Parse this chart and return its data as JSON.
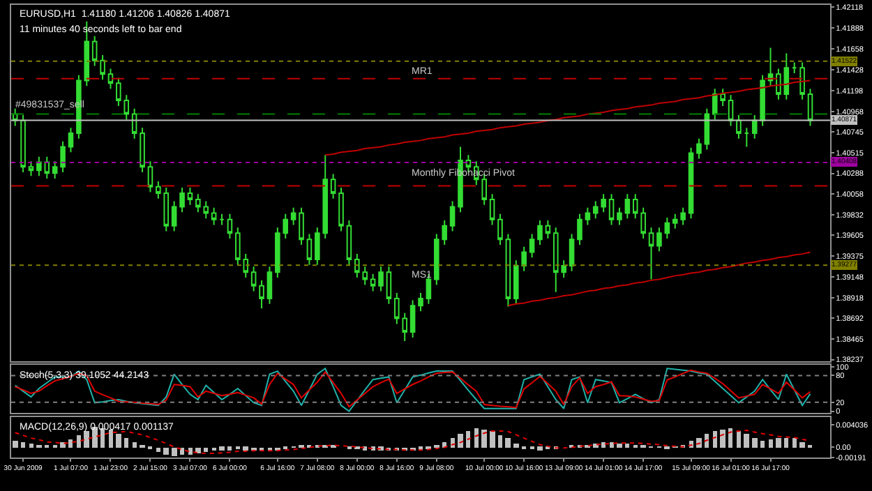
{
  "chart_data": [
    {
      "type": "candlestick",
      "title": "EURUSD,H1  1.41180 1.41206 1.40826 1.40871",
      "subtitle": "11 minutes 40 seconds left to bar end",
      "categories": [
        null,
        null,
        null,
        null,
        null,
        null,
        null,
        null,
        null,
        null,
        null,
        null,
        null,
        null,
        null,
        null,
        null,
        null,
        null,
        null,
        null,
        null,
        null,
        null,
        null,
        null,
        null,
        null,
        null,
        null,
        null,
        null,
        null,
        null,
        null,
        null,
        null,
        null,
        null,
        null,
        null,
        null,
        null,
        null,
        null,
        null,
        null,
        null,
        null,
        null,
        null,
        null,
        null,
        null,
        null,
        null,
        null,
        null,
        null,
        null,
        null,
        null,
        null,
        null,
        null,
        null,
        null,
        null,
        null,
        null,
        null,
        null,
        null,
        null,
        null,
        null,
        null,
        null,
        null,
        null,
        null,
        null,
        null,
        null,
        null,
        null,
        null,
        null,
        null,
        null,
        null,
        null,
        null,
        null,
        null,
        null,
        null,
        null,
        null,
        null,
        null
      ],
      "ylim": [
        1.3822,
        1.4214
      ],
      "yticks": [
        1.42118,
        1.41888,
        1.41658,
        1.41428,
        1.41198,
        1.40968,
        1.40745,
        1.40515,
        1.40288,
        1.40058,
        1.39832,
        1.39605,
        1.39375,
        1.39148,
        1.38918,
        1.38692,
        1.38465,
        1.38237
      ],
      "series": [
        {
          "type": "line",
          "color": "#c00000",
          "values": [
            null,
            null,
            null,
            null,
            null,
            null,
            null,
            null,
            null,
            null,
            null,
            null,
            null,
            null,
            null,
            null,
            null,
            null,
            null,
            null,
            null,
            null,
            null,
            null,
            null,
            null,
            null,
            null,
            null,
            null,
            null,
            null,
            null,
            null,
            null,
            null,
            null,
            null,
            null,
            1.4049,
            1.405,
            1.4052,
            1.4053,
            1.4054,
            1.4056,
            1.4057,
            1.4058,
            1.406,
            1.4061,
            1.4063,
            1.4064,
            1.4065,
            1.4067,
            1.4068,
            1.4069,
            1.4071,
            1.4072,
            1.4073,
            1.4075,
            1.4076,
            1.4077,
            1.4079,
            1.408,
            1.4081,
            1.4083,
            1.4084,
            1.4085,
            1.4087,
            1.4088,
            1.409,
            1.4091,
            1.4092,
            1.4094,
            1.4095,
            1.4096,
            1.4098,
            1.4099,
            1.41,
            1.4102,
            1.4103,
            1.4104,
            1.4106,
            1.4107,
            1.4108,
            1.411,
            1.4111,
            1.4112,
            1.4114,
            1.4115,
            1.4117,
            1.4118,
            1.4119,
            1.4121,
            1.4122,
            1.4123,
            1.4125,
            1.4126,
            1.4127,
            1.4129,
            1.413,
            1.4131
          ]
        },
        {
          "type": "line",
          "color": "#c00000",
          "values": [
            null,
            null,
            null,
            null,
            null,
            null,
            null,
            null,
            null,
            null,
            null,
            null,
            null,
            null,
            null,
            null,
            null,
            null,
            null,
            null,
            null,
            null,
            null,
            null,
            null,
            null,
            null,
            null,
            null,
            null,
            null,
            null,
            null,
            null,
            null,
            null,
            null,
            null,
            null,
            null,
            null,
            null,
            null,
            null,
            null,
            null,
            null,
            null,
            null,
            null,
            null,
            null,
            null,
            null,
            null,
            null,
            null,
            null,
            null,
            null,
            null,
            null,
            1.3883,
            1.3885,
            1.3886,
            1.3888,
            1.3889,
            1.3891,
            1.3892,
            1.3894,
            1.3895,
            1.3897,
            1.3899,
            1.39,
            1.3902,
            1.3903,
            1.3905,
            1.3906,
            1.3908,
            1.3909,
            1.3911,
            1.3912,
            1.3914,
            1.3916,
            1.3917,
            1.3919,
            1.392,
            1.3922,
            1.3923,
            1.3925,
            1.3926,
            1.3928,
            1.393,
            1.3931,
            1.3933,
            1.3934,
            1.3936,
            1.3937,
            1.3939,
            1.394,
            1.3942
          ]
        },
        {
          "color": "#33dd33",
          "ohlc": [
            [
              1.4094,
              1.41,
              1.4081,
              1.4087
            ],
            [
              1.4087,
              1.4093,
              1.403,
              1.4036
            ],
            [
              1.4036,
              1.4042,
              1.4026,
              1.4032
            ],
            [
              1.4032,
              1.4047,
              1.4026,
              1.4041
            ],
            [
              1.4041,
              1.4047,
              1.4023,
              1.4029
            ],
            [
              1.4029,
              1.4042,
              1.4023,
              1.4036
            ],
            [
              1.4036,
              1.4064,
              1.403,
              1.4058
            ],
            [
              1.4058,
              1.4079,
              1.4052,
              1.4073
            ],
            [
              1.4073,
              1.4137,
              1.4067,
              1.4131
            ],
            [
              1.4131,
              1.4196,
              1.4125,
              1.4174
            ],
            [
              1.4174,
              1.418,
              1.4147,
              1.4153
            ],
            [
              1.4153,
              1.4159,
              1.4132,
              1.4138
            ],
            [
              1.4138,
              1.4144,
              1.4122,
              1.4128
            ],
            [
              1.4128,
              1.4134,
              1.4103,
              1.4109
            ],
            [
              1.4109,
              1.4115,
              1.4088,
              1.4094
            ],
            [
              1.4094,
              1.41,
              1.4067,
              1.4073
            ],
            [
              1.4073,
              1.4079,
              1.403,
              1.4036
            ],
            [
              1.4036,
              1.4042,
              1.4008,
              1.4014
            ],
            [
              1.4014,
              1.402,
              1.4001,
              1.4007
            ],
            [
              1.4007,
              1.4013,
              1.3965,
              1.3971
            ],
            [
              1.3971,
              1.3998,
              1.3965,
              1.3992
            ],
            [
              1.3992,
              1.4013,
              1.3986,
              1.4007
            ],
            [
              1.4007,
              1.4013,
              1.3994,
              1.4
            ],
            [
              1.4,
              1.4006,
              1.3986,
              1.3992
            ],
            [
              1.3992,
              1.3998,
              1.3979,
              1.3985
            ],
            [
              1.3985,
              1.3991,
              1.3972,
              1.3978
            ],
            [
              1.3978,
              1.3984,
              1.3972,
              1.3978
            ],
            [
              1.3978,
              1.3984,
              1.3957,
              1.3963
            ],
            [
              1.3963,
              1.3969,
              1.3928,
              1.3934
            ],
            [
              1.3934,
              1.394,
              1.3914,
              1.392
            ],
            [
              1.392,
              1.3926,
              1.3899,
              1.3905
            ],
            [
              1.3905,
              1.3911,
              1.388,
              1.3891
            ],
            [
              1.3891,
              1.3926,
              1.3885,
              1.392
            ],
            [
              1.392,
              1.3969,
              1.3914,
              1.3963
            ],
            [
              1.3963,
              1.3984,
              1.3957,
              1.3978
            ],
            [
              1.3978,
              1.3991,
              1.3972,
              1.3985
            ],
            [
              1.3985,
              1.3991,
              1.395,
              1.3956
            ],
            [
              1.3956,
              1.3962,
              1.3928,
              1.3934
            ],
            [
              1.3934,
              1.3969,
              1.3928,
              1.3963
            ],
            [
              1.3963,
              1.4049,
              1.3957,
              1.4022
            ],
            [
              1.4022,
              1.4028,
              1.4001,
              1.4007
            ],
            [
              1.4007,
              1.4013,
              1.3965,
              1.3971
            ],
            [
              1.3971,
              1.3977,
              1.3928,
              1.3934
            ],
            [
              1.3934,
              1.394,
              1.3914,
              1.392
            ],
            [
              1.392,
              1.3926,
              1.3906,
              1.3912
            ],
            [
              1.3912,
              1.3918,
              1.3899,
              1.3905
            ],
            [
              1.3905,
              1.3926,
              1.3899,
              1.392
            ],
            [
              1.392,
              1.3926,
              1.3885,
              1.3891
            ],
            [
              1.3891,
              1.3897,
              1.3863,
              1.3869
            ],
            [
              1.3869,
              1.3875,
              1.3844,
              1.3854
            ],
            [
              1.3854,
              1.3889,
              1.3848,
              1.3883
            ],
            [
              1.3883,
              1.3897,
              1.3877,
              1.3891
            ],
            [
              1.3891,
              1.3918,
              1.3885,
              1.3912
            ],
            [
              1.3912,
              1.3962,
              1.3906,
              1.3956
            ],
            [
              1.3956,
              1.3977,
              1.395,
              1.3971
            ],
            [
              1.3971,
              1.3998,
              1.3965,
              1.3992
            ],
            [
              1.3992,
              1.4058,
              1.3986,
              1.4043
            ],
            [
              1.4043,
              1.4049,
              1.403,
              1.4036
            ],
            [
              1.4036,
              1.4042,
              1.4016,
              1.4022
            ],
            [
              1.4022,
              1.4028,
              1.3994,
              1.4
            ],
            [
              1.4,
              1.4006,
              1.3972,
              1.3978
            ],
            [
              1.3978,
              1.3984,
              1.395,
              1.3956
            ],
            [
              1.3956,
              1.3962,
              1.3882,
              1.3891
            ],
            [
              1.3891,
              1.3933,
              1.3885,
              1.3927
            ],
            [
              1.3927,
              1.3948,
              1.3921,
              1.3942
            ],
            [
              1.3942,
              1.3962,
              1.3936,
              1.3956
            ],
            [
              1.3956,
              1.3977,
              1.395,
              1.3971
            ],
            [
              1.3971,
              1.3977,
              1.3957,
              1.3963
            ],
            [
              1.3963,
              1.3969,
              1.3898,
              1.392
            ],
            [
              1.392,
              1.3933,
              1.3914,
              1.3927
            ],
            [
              1.3927,
              1.3962,
              1.3921,
              1.3956
            ],
            [
              1.3956,
              1.3984,
              1.395,
              1.3978
            ],
            [
              1.3978,
              1.3991,
              1.3972,
              1.3985
            ],
            [
              1.3985,
              1.3998,
              1.3979,
              1.3992
            ],
            [
              1.3992,
              1.4006,
              1.3986,
              1.4
            ],
            [
              1.4,
              1.4006,
              1.3972,
              1.3978
            ],
            [
              1.3978,
              1.3991,
              1.3972,
              1.3985
            ],
            [
              1.3985,
              1.4006,
              1.3979,
              1.4
            ],
            [
              1.4,
              1.4006,
              1.3979,
              1.3985
            ],
            [
              1.3985,
              1.3991,
              1.3957,
              1.3963
            ],
            [
              1.3963,
              1.3969,
              1.3912,
              1.3949
            ],
            [
              1.3949,
              1.3969,
              1.3943,
              1.3963
            ],
            [
              1.3963,
              1.398,
              1.3957,
              1.3974
            ],
            [
              1.3974,
              1.3984,
              1.3968,
              1.3978
            ],
            [
              1.3978,
              1.3991,
              1.3972,
              1.3985
            ],
            [
              1.3985,
              1.4057,
              1.3979,
              1.4051
            ],
            [
              1.4051,
              1.4067,
              1.4045,
              1.4061
            ],
            [
              1.4061,
              1.41,
              1.4055,
              1.4094
            ],
            [
              1.4094,
              1.4122,
              1.4088,
              1.4116
            ],
            [
              1.4116,
              1.4122,
              1.4103,
              1.4109
            ],
            [
              1.4109,
              1.4115,
              1.4081,
              1.4087
            ],
            [
              1.4087,
              1.4093,
              1.4067,
              1.4073
            ],
            [
              1.4073,
              1.4079,
              1.4058,
              1.4073
            ],
            [
              1.4073,
              1.4093,
              1.4067,
              1.4087
            ],
            [
              1.4087,
              1.4137,
              1.4081,
              1.4131
            ],
            [
              1.4131,
              1.4167,
              1.4125,
              1.4138
            ],
            [
              1.4138,
              1.4144,
              1.411,
              1.4116
            ],
            [
              1.4116,
              1.4161,
              1.411,
              1.4145
            ],
            [
              1.4145,
              1.4151,
              1.4139,
              1.4145
            ],
            [
              1.4145,
              1.4151,
              1.411,
              1.4116
            ],
            [
              1.4116,
              1.4122,
              1.4081,
              1.4087
            ]
          ]
        }
      ],
      "ref_lines": [
        {
          "axis": "y",
          "value": 1.41522,
          "label": "MR1",
          "color": "#808000",
          "line_style": "dotted"
        },
        {
          "axis": "y",
          "value": 1.4133,
          "color": "#c00000",
          "line_style": "dashed"
        },
        {
          "axis": "y",
          "value": 1.4094,
          "label": "#49831537_sell",
          "color": "#008000",
          "line_style": "dashed"
        },
        {
          "axis": "y",
          "value": 1.40871,
          "color": "#c0c0c0",
          "line_style": "solid"
        },
        {
          "axis": "y",
          "value": 1.40408,
          "label": "Monthly Fibonacci Pivot",
          "color": "#a000a0",
          "line_style": "dotted"
        },
        {
          "axis": "y",
          "value": 1.4015,
          "color": "#c00000",
          "line_style": "dashed"
        },
        {
          "axis": "y",
          "value": 1.39277,
          "label": "MS1",
          "color": "#808000",
          "line_style": "dotted"
        }
      ],
      "annotations": [
        {
          "text": "1.41522",
          "y": 1.41522
        },
        {
          "text": "1.40871",
          "y": 1.40871
        },
        {
          "text": "1.40408",
          "y": 1.40408
        },
        {
          "text": "1.39277",
          "y": 1.39277
        }
      ]
    },
    {
      "type": "line",
      "title": "Stoch(5,3,3) 39.1052 44.2143",
      "categories": [
        null,
        null,
        null,
        null,
        null,
        null,
        null,
        null,
        null,
        null,
        null,
        null,
        null,
        null,
        null,
        null,
        null,
        null,
        null,
        null,
        null,
        null,
        null,
        null,
        null,
        null,
        null,
        null,
        null,
        null,
        null,
        null,
        null,
        null,
        null,
        null,
        null,
        null,
        null,
        null,
        null,
        null,
        null,
        null,
        null,
        null,
        null,
        null,
        null,
        null,
        null,
        null,
        null,
        null,
        null,
        null,
        null,
        null,
        null,
        null,
        null,
        null,
        null,
        null,
        null,
        null,
        null,
        null,
        null,
        null,
        null,
        null,
        null,
        null,
        null,
        null,
        null,
        null,
        null,
        null,
        null,
        null,
        null,
        null,
        null,
        null,
        null,
        null,
        null,
        null,
        null,
        null,
        null,
        null,
        null,
        null,
        null,
        null,
        null,
        null,
        null
      ],
      "ylim": [
        -4,
        104
      ],
      "yticks": [
        0,
        20,
        80,
        100
      ],
      "series": [
        {
          "color": "#20b2aa",
          "values": [
            58,
            45,
            32,
            51,
            64,
            77,
            77,
            77,
            90,
            71,
            19,
            21,
            24,
            26,
            22,
            19,
            17,
            15,
            13,
            32,
            83,
            60,
            38,
            26,
            58,
            42,
            26,
            38,
            51,
            35,
            19,
            13,
            83,
            90,
            67,
            45,
            13,
            48,
            83,
            96,
            55,
            13,
            0,
            24,
            48,
            71,
            74,
            77,
            19,
            48,
            77,
            81,
            86,
            90,
            90,
            90,
            69,
            47,
            26,
            6,
            6,
            6,
            6,
            6,
            71,
            77,
            83,
            55,
            26,
            6,
            71,
            77,
            19,
            71,
            68,
            64,
            19,
            28,
            38,
            28,
            19,
            26,
            96,
            94,
            92,
            90,
            86,
            83,
            67,
            51,
            35,
            19,
            32,
            45,
            71,
            48,
            26,
            83,
            48,
            13,
            39
          ]
        },
        {
          "color": "#e00000",
          "values": [
            55,
            48,
            40,
            45,
            57,
            68,
            73,
            78,
            85,
            80,
            45,
            37,
            30,
            22,
            21,
            20,
            18,
            17,
            15,
            25,
            60,
            58,
            55,
            32,
            45,
            40,
            35,
            38,
            42,
            36,
            30,
            16,
            60,
            85,
            72,
            60,
            30,
            48,
            65,
            88,
            64,
            40,
            10,
            25,
            40,
            55,
            64,
            72,
            40,
            50,
            60,
            68,
            77,
            85,
            87,
            88,
            74,
            59,
            45,
            15,
            13,
            11,
            10,
            8,
            50,
            64,
            78,
            62,
            45,
            15,
            55,
            75,
            40,
            55,
            60,
            66,
            35,
            34,
            32,
            27,
            22,
            24,
            70,
            77,
            85,
            92,
            88,
            85,
            74,
            62,
            46,
            30,
            34,
            38,
            60,
            50,
            40,
            65,
            48,
            30,
            44
          ]
        }
      ],
      "ref_lines": [
        {
          "axis": "y",
          "value": 80,
          "color": "#808080",
          "line_style": "dotted"
        },
        {
          "axis": "y",
          "value": 20,
          "color": "#808080",
          "line_style": "dotted"
        }
      ]
    },
    {
      "type": "bar",
      "title": "MACD(12,26,9) 0.000417 0.001137",
      "categories": [
        null,
        "30 Jun 2009",
        null,
        null,
        null,
        null,
        null,
        "1 Jul 07:00",
        null,
        null,
        null,
        null,
        "1 Jul 23:00",
        null,
        null,
        null,
        null,
        "2 Jul 15:00",
        null,
        null,
        null,
        null,
        "3 Jul 07:00",
        null,
        null,
        null,
        null,
        "6 Jul 00:00",
        null,
        null,
        null,
        null,
        null,
        "6 Jul 16:00",
        null,
        null,
        null,
        null,
        "7 Jul 08:00",
        null,
        null,
        null,
        null,
        "8 Jul 00:00",
        null,
        null,
        null,
        null,
        "8 Jul 16:00",
        null,
        null,
        null,
        null,
        "9 Jul 08:00",
        null,
        null,
        null,
        null,
        null,
        "10 Jul 00:00",
        null,
        null,
        null,
        null,
        "10 Jul 16:00",
        null,
        null,
        null,
        null,
        "13 Jul 09:00",
        null,
        null,
        null,
        null,
        "14 Jul 01:00",
        null,
        null,
        null,
        null,
        "14 Jul 17:00",
        null,
        null,
        null,
        null,
        null,
        "15 Jul 09:00",
        null,
        null,
        null,
        null,
        "16 Jul 01:00",
        null,
        null,
        null,
        null,
        "16 Jul 17:00",
        null,
        null,
        null,
        null,
        null
      ],
      "ylim": [
        -0.002,
        0.0055
      ],
      "yticks": [
        0.004036,
        {
          "value": 0,
          "label": "0.00"
        },
        -0.00191
      ],
      "series": [
        {
          "color": "#c0c0c0",
          "values": [
            0.0012,
            0.0009,
            0.0006,
            0.0004,
            0.0002,
            0.0005,
            0.0008,
            0.0015,
            0.0022,
            0.0029,
            0.0036,
            0.0034,
            0.0032,
            0.0025,
            0.0018,
            0.001,
            0.0002,
            -0.0004,
            -0.001,
            -0.0013,
            -0.0016,
            -0.0015,
            -0.0013,
            -0.0011,
            -0.0008,
            -0.0007,
            -0.0005,
            -0.0005,
            -0.0004,
            -0.0005,
            -0.0006,
            -0.0007,
            -0.0007,
            -0.0006,
            -0.0004,
            -0.0001,
            0.0002,
            0.0004,
            0.0005,
            0.0004,
            0.0003,
            0,
            -0.0003,
            -0.0004,
            -0.0005,
            -0.0005,
            -0.0005,
            -0.0006,
            -0.0006,
            -0.0006,
            -0.0006,
            -0.0005,
            -0.0003,
            0.0003,
            0.0008,
            0.0016,
            0.0024,
            0.003,
            0.0035,
            0.0033,
            0.003,
            0.0023,
            0.0016,
            0.0007,
            -0.0002,
            -0.0004,
            -0.0005,
            -0.0004,
            -0.0002,
            0,
            0.0002,
            0.0004,
            0.0005,
            0.0007,
            0.0008,
            0.0008,
            0.0007,
            0.0006,
            0.0005,
            0.0003,
            0.0001,
            -0.0001,
            -0.0002,
            0.0001,
            0.0003,
            0.0011,
            0.0018,
            0.0024,
            0.003,
            0.0032,
            0.0034,
            0.0029,
            0.0024,
            0.0018,
            0.0012,
            0.0014,
            0.0016,
            0.0016,
            0.0016,
            0.001,
            0.0004
          ]
        },
        {
          "type": "line",
          "color": "#e00000",
          "line_style": "dotted",
          "values": [
            0.0026,
            0.0021,
            0.0016,
            0.0013,
            0.0009,
            0.0008,
            0.0006,
            0.0008,
            0.001,
            0.0014,
            0.0018,
            0.0022,
            0.0026,
            0.0027,
            0.0028,
            0.0025,
            0.0022,
            0.0017,
            0.0012,
            0.0006,
            0,
            -0.0005,
            -0.0009,
            -0.0011,
            -0.0012,
            -0.0012,
            -0.0011,
            -0.001,
            -0.0008,
            -0.0008,
            -0.0007,
            -0.0007,
            -0.0007,
            -0.0007,
            -0.0006,
            -0.0005,
            -0.0003,
            -0.0001,
            0.0001,
            0.0002,
            0.0003,
            0.0002,
            0.0001,
            0,
            -0.0002,
            -0.0003,
            -0.0004,
            -0.0005,
            -0.0005,
            -0.0006,
            -0.0006,
            -0.0006,
            -0.0005,
            -0.0003,
            -0.0001,
            0.0004,
            0.0008,
            0.0014,
            0.002,
            0.0025,
            0.0029,
            0.0029,
            0.0028,
            0.0022,
            0.0016,
            0.001,
            0.0004,
            0.0001,
            -0.0002,
            -0.0002,
            -0.0001,
            0.0001,
            0.0002,
            0.0004,
            0.0005,
            0.0006,
            0.0007,
            0.0007,
            0.0007,
            0.0006,
            0.0005,
            0.0004,
            0.0002,
            0.0001,
            0,
            0.0003,
            0.0006,
            0.0012,
            0.0017,
            0.0022,
            0.0027,
            0.0029,
            0.003,
            0.0027,
            0.0024,
            0.0022,
            0.0019,
            0.0018,
            0.0017,
            0.0014,
            0.0011
          ]
        }
      ]
    }
  ]
}
